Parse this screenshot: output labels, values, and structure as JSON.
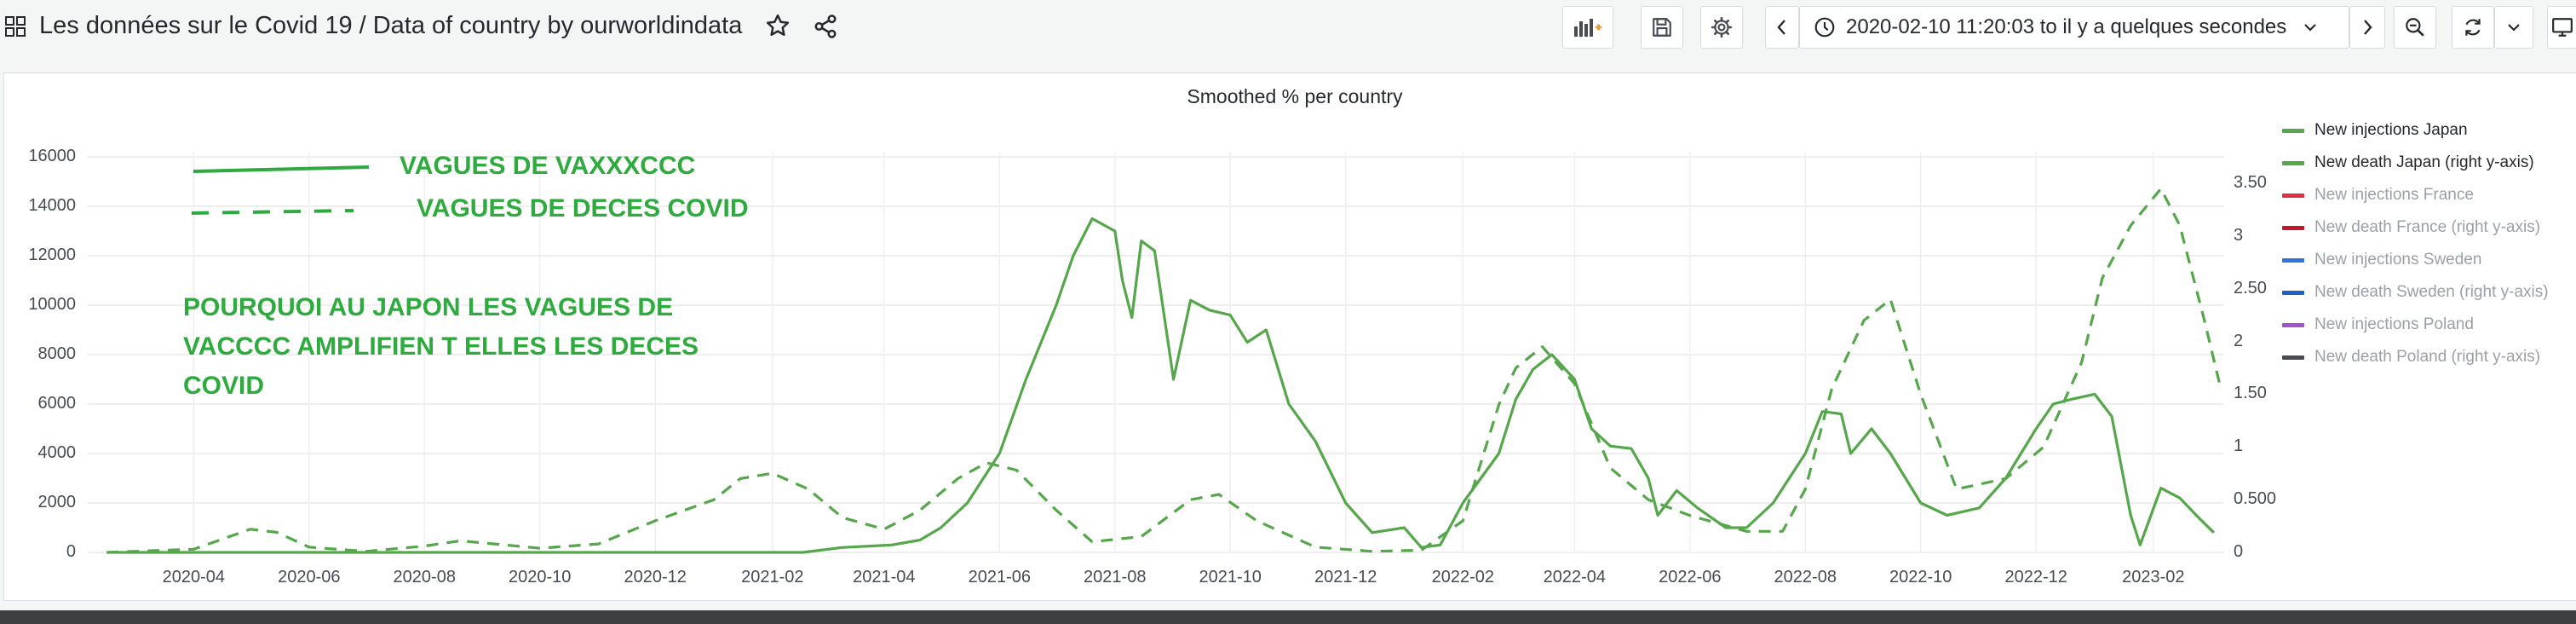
{
  "header": {
    "title": "Les données sur le Covid 19  / Data of country by ourworldindata",
    "time_range": "2020-02-10 11:20:03 to il y a quelques secondes"
  },
  "icons": {
    "dashboard": "grid-icon",
    "favorite": "star-icon",
    "share": "share-icon",
    "add_panel": "add-panel-icon",
    "save": "save-icon",
    "settings": "gear-icon",
    "prev": "chevron-left-icon",
    "time": "clock-icon",
    "next": "chevron-right-icon",
    "zoom_out": "zoom-out-icon",
    "refresh": "refresh-icon",
    "refresh_interval": "chevron-down-icon",
    "tv_mode": "monitor-icon"
  },
  "panel": {
    "title": "Smoothed % per country"
  },
  "chart_data": {
    "type": "line",
    "title": "Smoothed % per country",
    "x_ticks": [
      "2020-04",
      "2020-06",
      "2020-08",
      "2020-10",
      "2020-12",
      "2021-02",
      "2021-04",
      "2021-06",
      "2021-08",
      "2021-10",
      "2021-12",
      "2022-02",
      "2022-04",
      "2022-06",
      "2022-08",
      "2022-10",
      "2022-12",
      "2023-02"
    ],
    "y_left": {
      "min": 0,
      "max": 16000,
      "ticks": [
        "0",
        "2000",
        "4000",
        "6000",
        "8000",
        "10000",
        "12000",
        "14000",
        "16000"
      ]
    },
    "y_right": {
      "min": 0,
      "max": 3.8,
      "ticks": [
        "0",
        "0.500",
        "1",
        "1.50",
        "2",
        "2.50",
        "3",
        "3.50"
      ]
    },
    "legend_position": "right",
    "grid": true,
    "series": [
      {
        "name": "New injections Japan",
        "color": "#56a64b",
        "style": "solid",
        "axis": "left",
        "points": [
          [
            "2020-02-15",
            0
          ],
          [
            "2021-02-17",
            0
          ],
          [
            "2021-03-10",
            200
          ],
          [
            "2021-04-05",
            300
          ],
          [
            "2021-04-20",
            500
          ],
          [
            "2021-05-01",
            1000
          ],
          [
            "2021-05-15",
            2000
          ],
          [
            "2021-06-01",
            4000
          ],
          [
            "2021-06-15",
            7000
          ],
          [
            "2021-07-01",
            10000
          ],
          [
            "2021-07-10",
            12000
          ],
          [
            "2021-07-20",
            13500
          ],
          [
            "2021-08-01",
            13000
          ],
          [
            "2021-08-05",
            11000
          ],
          [
            "2021-08-10",
            9500
          ],
          [
            "2021-08-15",
            12600
          ],
          [
            "2021-08-22",
            12200
          ],
          [
            "2021-09-01",
            7000
          ],
          [
            "2021-09-10",
            10200
          ],
          [
            "2021-09-20",
            9800
          ],
          [
            "2021-10-01",
            9600
          ],
          [
            "2021-10-10",
            8500
          ],
          [
            "2021-10-20",
            9000
          ],
          [
            "2021-11-01",
            6000
          ],
          [
            "2021-11-15",
            4500
          ],
          [
            "2021-12-01",
            2000
          ],
          [
            "2021-12-15",
            800
          ],
          [
            "2022-01-01",
            1000
          ],
          [
            "2022-01-10",
            200
          ],
          [
            "2022-01-20",
            300
          ],
          [
            "2022-02-01",
            2000
          ],
          [
            "2022-02-20",
            4000
          ],
          [
            "2022-03-01",
            6200
          ],
          [
            "2022-03-10",
            7400
          ],
          [
            "2022-03-20",
            8000
          ],
          [
            "2022-04-01",
            7000
          ],
          [
            "2022-04-10",
            5000
          ],
          [
            "2022-04-20",
            4300
          ],
          [
            "2022-05-01",
            4200
          ],
          [
            "2022-05-10",
            3000
          ],
          [
            "2022-05-15",
            1500
          ],
          [
            "2022-05-25",
            2500
          ],
          [
            "2022-06-05",
            1800
          ],
          [
            "2022-06-20",
            1000
          ],
          [
            "2022-07-01",
            1000
          ],
          [
            "2022-07-15",
            2000
          ],
          [
            "2022-08-01",
            4000
          ],
          [
            "2022-08-10",
            5700
          ],
          [
            "2022-08-20",
            5600
          ],
          [
            "2022-08-25",
            4000
          ],
          [
            "2022-09-05",
            5000
          ],
          [
            "2022-09-15",
            4000
          ],
          [
            "2022-10-01",
            2000
          ],
          [
            "2022-10-15",
            1500
          ],
          [
            "2022-11-01",
            1800
          ],
          [
            "2022-11-15",
            3000
          ],
          [
            "2022-12-01",
            5000
          ],
          [
            "2022-12-10",
            6000
          ],
          [
            "2022-12-20",
            6200
          ],
          [
            "2023-01-01",
            6400
          ],
          [
            "2023-01-10",
            5500
          ],
          [
            "2023-01-20",
            1500
          ],
          [
            "2023-01-25",
            300
          ],
          [
            "2023-02-05",
            2600
          ],
          [
            "2023-02-15",
            2200
          ],
          [
            "2023-02-25",
            1400
          ],
          [
            "2023-03-05",
            800
          ]
        ]
      },
      {
        "name": "New death Japan (right y-axis)",
        "color": "#56a64b",
        "style": "dashed",
        "axis": "right",
        "points": [
          [
            "2020-02-15",
            0
          ],
          [
            "2020-04-01",
            0.03
          ],
          [
            "2020-05-01",
            0.22
          ],
          [
            "2020-05-15",
            0.19
          ],
          [
            "2020-06-01",
            0.05
          ],
          [
            "2020-07-01",
            0.01
          ],
          [
            "2020-08-01",
            0.06
          ],
          [
            "2020-08-20",
            0.11
          ],
          [
            "2020-10-01",
            0.04
          ],
          [
            "2020-11-01",
            0.08
          ],
          [
            "2020-12-01",
            0.3
          ],
          [
            "2021-01-01",
            0.5
          ],
          [
            "2021-01-15",
            0.7
          ],
          [
            "2021-02-01",
            0.75
          ],
          [
            "2021-02-20",
            0.6
          ],
          [
            "2021-03-10",
            0.33
          ],
          [
            "2021-04-01",
            0.22
          ],
          [
            "2021-04-20",
            0.4
          ],
          [
            "2021-05-10",
            0.7
          ],
          [
            "2021-05-25",
            0.85
          ],
          [
            "2021-06-10",
            0.78
          ],
          [
            "2021-07-01",
            0.4
          ],
          [
            "2021-07-20",
            0.1
          ],
          [
            "2021-08-15",
            0.15
          ],
          [
            "2021-09-10",
            0.5
          ],
          [
            "2021-09-25",
            0.55
          ],
          [
            "2021-10-15",
            0.3
          ],
          [
            "2021-11-15",
            0.05
          ],
          [
            "2021-12-15",
            0.01
          ],
          [
            "2022-01-10",
            0.02
          ],
          [
            "2022-02-01",
            0.3
          ],
          [
            "2022-02-20",
            1.4
          ],
          [
            "2022-03-01",
            1.75
          ],
          [
            "2022-03-15",
            1.95
          ],
          [
            "2022-04-01",
            1.6
          ],
          [
            "2022-04-20",
            0.8
          ],
          [
            "2022-05-10",
            0.5
          ],
          [
            "2022-06-01",
            0.35
          ],
          [
            "2022-07-01",
            0.2
          ],
          [
            "2022-07-20",
            0.2
          ],
          [
            "2022-08-01",
            0.6
          ],
          [
            "2022-08-15",
            1.55
          ],
          [
            "2022-09-01",
            2.2
          ],
          [
            "2022-09-15",
            2.4
          ],
          [
            "2022-10-01",
            1.5
          ],
          [
            "2022-10-20",
            0.6
          ],
          [
            "2022-11-15",
            0.7
          ],
          [
            "2022-12-05",
            1.0
          ],
          [
            "2022-12-25",
            1.8
          ],
          [
            "2023-01-05",
            2.6
          ],
          [
            "2023-01-20",
            3.1
          ],
          [
            "2023-02-05",
            3.45
          ],
          [
            "2023-02-15",
            3.1
          ],
          [
            "2023-02-28",
            2.2
          ],
          [
            "2023-03-08",
            1.6
          ]
        ]
      },
      {
        "name": "New injections France",
        "color": "#e02f44",
        "style": "solid",
        "axis": "left",
        "points": []
      },
      {
        "name": "New death France (right y-axis)",
        "color": "#c4162a",
        "style": "solid",
        "axis": "right",
        "points": []
      },
      {
        "name": "New injections Sweden",
        "color": "#3274d9",
        "style": "solid",
        "axis": "left",
        "points": []
      },
      {
        "name": "New death Sweden (right y-axis)",
        "color": "#1f60c4",
        "style": "solid",
        "axis": "right",
        "points": []
      },
      {
        "name": "New injections Poland",
        "color": "#a352cc",
        "style": "solid",
        "axis": "left",
        "points": []
      },
      {
        "name": "New death Poland (right y-axis)",
        "color": "#464c54",
        "style": "solid",
        "axis": "right",
        "points": []
      }
    ]
  },
  "annotations": {
    "legend_solid": "VAGUES DE VAXXXCCC",
    "legend_dashed": "VAGUES DE DECES COVID",
    "question_lines": [
      "POURQUOI AU JAPON LES VAGUES DE",
      "VACCCC AMPLIFIEN T ELLES LES DECES",
      "COVID"
    ]
  }
}
